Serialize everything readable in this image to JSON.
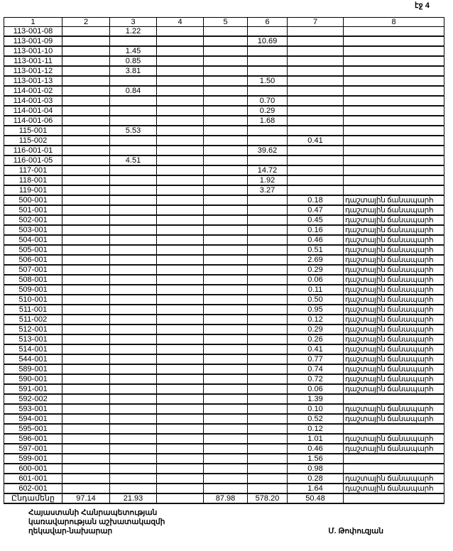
{
  "page_label": "էջ 4",
  "table": {
    "headers": [
      "1",
      "2",
      "3",
      "4",
      "5",
      "6",
      "7",
      "8"
    ],
    "rows": [
      [
        "113-001-08",
        "",
        "1.22",
        "",
        "",
        "",
        "",
        ""
      ],
      [
        "113-001-09",
        "",
        "",
        "",
        "",
        "10.69",
        "",
        ""
      ],
      [
        "113-001-10",
        "",
        "1.45",
        "",
        "",
        "",
        "",
        ""
      ],
      [
        "113-001-11",
        "",
        "0.85",
        "",
        "",
        "",
        "",
        ""
      ],
      [
        "113-001-12",
        "",
        "3.81",
        "",
        "",
        "",
        "",
        ""
      ],
      [
        "113-001-13",
        "",
        "",
        "",
        "",
        "1.50",
        "",
        ""
      ],
      [
        "114-001-02",
        "",
        "0.84",
        "",
        "",
        "",
        "",
        ""
      ],
      [
        "114-001-03",
        "",
        "",
        "",
        "",
        "0.70",
        "",
        ""
      ],
      [
        "114-001-04",
        "",
        "",
        "",
        "",
        "0.29",
        "",
        ""
      ],
      [
        "114-001-06",
        "",
        "",
        "",
        "",
        "1.68",
        "",
        ""
      ],
      [
        "115-001",
        "",
        "5.53",
        "",
        "",
        "",
        "",
        ""
      ],
      [
        "115-002",
        "",
        "",
        "",
        "",
        "",
        "0.41",
        ""
      ],
      [
        "116-001-01",
        "",
        "",
        "",
        "",
        "39.62",
        "",
        ""
      ],
      [
        "116-001-05",
        "",
        "4.51",
        "",
        "",
        "",
        "",
        ""
      ],
      [
        "117-001",
        "",
        "",
        "",
        "",
        "14.72",
        "",
        ""
      ],
      [
        "118-001",
        "",
        "",
        "",
        "",
        "1.92",
        "",
        ""
      ],
      [
        "119-001",
        "",
        "",
        "",
        "",
        "3.27",
        "",
        ""
      ],
      [
        "500-001",
        "",
        "",
        "",
        "",
        "",
        "0.18",
        "դաշտային ճանապարհ"
      ],
      [
        "501-001",
        "",
        "",
        "",
        "",
        "",
        "0.47",
        "դաշտային ճանապարհ"
      ],
      [
        "502-001",
        "",
        "",
        "",
        "",
        "",
        "0.45",
        "դաշտային ճանապարհ"
      ],
      [
        "503-001",
        "",
        "",
        "",
        "",
        "",
        "0.16",
        "դաշտային ճանապարհ"
      ],
      [
        "504-001",
        "",
        "",
        "",
        "",
        "",
        "0.46",
        "դաշտային ճանապարհ"
      ],
      [
        "505-001",
        "",
        "",
        "",
        "",
        "",
        "0.51",
        "դաշտային ճանապարհ"
      ],
      [
        "506-001",
        "",
        "",
        "",
        "",
        "",
        "2.69",
        "դաշտային ճանապարհ"
      ],
      [
        "507-001",
        "",
        "",
        "",
        "",
        "",
        "0.29",
        "դաշտային ճանապարհ"
      ],
      [
        "508-001",
        "",
        "",
        "",
        "",
        "",
        "0.06",
        "դաշտային ճանապարհ"
      ],
      [
        "509-001",
        "",
        "",
        "",
        "",
        "",
        "0.11",
        "դաշտային ճանապարհ"
      ],
      [
        "510-001",
        "",
        "",
        "",
        "",
        "",
        "0.50",
        "դաշտային ճանապարհ"
      ],
      [
        "511-001",
        "",
        "",
        "",
        "",
        "",
        "0.95",
        "դաշտային ճանապարհ"
      ],
      [
        "511-002",
        "",
        "",
        "",
        "",
        "",
        "0.12",
        "դաշտային ճանապարհ"
      ],
      [
        "512-001",
        "",
        "",
        "",
        "",
        "",
        "0.29",
        "դաշտային ճանապարհ"
      ],
      [
        "513-001",
        "",
        "",
        "",
        "",
        "",
        "0.26",
        "դաշտային ճանապարհ"
      ],
      [
        "514-001",
        "",
        "",
        "",
        "",
        "",
        "0.41",
        "դաշտային ճանապարհ"
      ],
      [
        "544-001",
        "",
        "",
        "",
        "",
        "",
        "0.77",
        "դաշտային ճանապարհ"
      ],
      [
        "589-001",
        "",
        "",
        "",
        "",
        "",
        "0.74",
        "դաշտային ճանապարհ"
      ],
      [
        "590-001",
        "",
        "",
        "",
        "",
        "",
        "0.72",
        "դաշտային ճանապարհ"
      ],
      [
        "591-001",
        "",
        "",
        "",
        "",
        "",
        "0.06",
        "դաշտային ճանապարհ"
      ],
      [
        "592-002",
        "",
        "",
        "",
        "",
        "",
        "1.39",
        ""
      ],
      [
        "593-001",
        "",
        "",
        "",
        "",
        "",
        "0.10",
        "դաշտային ճանապարհ"
      ],
      [
        "594-001",
        "",
        "",
        "",
        "",
        "",
        "0.52",
        "դաշտային ճանապարհ"
      ],
      [
        "595-001",
        "",
        "",
        "",
        "",
        "",
        "0.12",
        ""
      ],
      [
        "596-001",
        "",
        "",
        "",
        "",
        "",
        "1.01",
        "դաշտային ճանապարհ"
      ],
      [
        "597-001",
        "",
        "",
        "",
        "",
        "",
        "0.46",
        "դաշտային ճանապարհ"
      ],
      [
        "599-001",
        "",
        "",
        "",
        "",
        "",
        "1.56",
        ""
      ],
      [
        "600-001",
        "",
        "",
        "",
        "",
        "",
        "0.98",
        ""
      ],
      [
        "601-001",
        "",
        "",
        "",
        "",
        "",
        "0.28",
        "դաշտային ճանապարհ"
      ],
      [
        "602-001",
        "",
        "",
        "",
        "",
        "",
        "1.64",
        "դաշտային ճանապարհ"
      ]
    ],
    "total": [
      "Ընդամենը",
      "97.14",
      "21.93",
      "",
      "87.98",
      "578.20",
      "50.48",
      ""
    ]
  },
  "signature": {
    "title_lines": [
      "Հայաստանի Հանրապետության",
      "կառավարության աշխատակազմի",
      "ղեկավար-նախարար"
    ],
    "name": "Մ. Թոփուզյան"
  }
}
